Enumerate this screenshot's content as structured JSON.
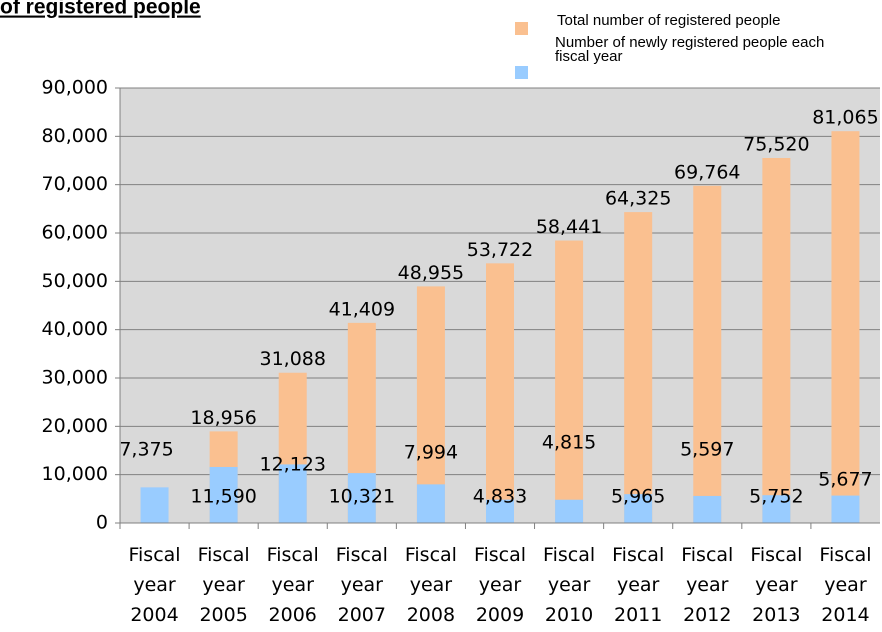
{
  "chart_data": {
    "type": "overlap-bar",
    "title": "of registered people",
    "categories": [
      "Fiscal year 2004",
      "Fiscal year 2005",
      "Fiscal year 2006",
      "Fiscal year 2007",
      "Fiscal year 2008",
      "Fiscal year 2009",
      "Fiscal year 2010",
      "Fiscal year 2011",
      "Fiscal year 2012",
      "Fiscal year 2013",
      "Fiscal year 2014"
    ],
    "series": [
      {
        "name": "Total number of registered people",
        "color": "#fac090",
        "values": [
          null,
          18956,
          31088,
          41409,
          48955,
          53722,
          58441,
          64325,
          69764,
          75520,
          81065
        ],
        "value_labels": [
          null,
          "18,956",
          "31,088",
          "41,409",
          "48,955",
          "53,722",
          "58,441",
          "64,325",
          "69,764",
          "75,520",
          "81,065"
        ]
      },
      {
        "name": "Number of newly registered people each fiscal year",
        "color": "#99ccff",
        "values": [
          7375,
          11590,
          12123,
          10321,
          7994,
          4833,
          4815,
          5965,
          5597,
          5752,
          5677
        ],
        "value_labels": [
          "7,375",
          "11,590",
          "12,123",
          "10,321",
          "7,994",
          "4,833",
          "4,815",
          "5,965",
          "5,597",
          "5,752",
          "5,677"
        ]
      }
    ],
    "ylim": [
      0,
      90000
    ],
    "yticks": [
      0,
      {
        "value": 10000,
        "label": "10,000"
      },
      {
        "value": 20000,
        "label": "20,000"
      },
      {
        "value": 30000,
        "label": "30,000"
      },
      {
        "value": 40000,
        "label": "40,000"
      },
      {
        "value": 50000,
        "label": "50,000"
      },
      {
        "value": 60000,
        "label": "60,000"
      },
      {
        "value": 70000,
        "label": "70,000"
      },
      {
        "value": 80000,
        "label": "80,000"
      },
      {
        "value": 90000,
        "label": "90,000"
      }
    ],
    "grid": true
  }
}
